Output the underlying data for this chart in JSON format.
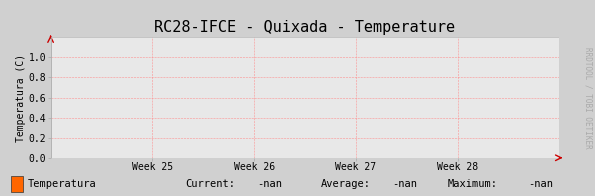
{
  "title": "RC28-IFCE - Quixada - Temperature",
  "ylabel": "Temperatura (C)",
  "fig_background_color": "#d0d0d0",
  "plot_background_color": "#e8e8e8",
  "grid_color": "#ff8888",
  "arrow_color": "#cc0000",
  "border_color": "#aaaaaa",
  "ylim": [
    0.0,
    1.2
  ],
  "yticks": [
    0.0,
    0.2,
    0.4,
    0.6,
    0.8,
    1.0
  ],
  "ytick_labels": [
    "0.0",
    "0.2",
    "0.4",
    "0.6",
    "0.8",
    "1.0"
  ],
  "xtick_labels": [
    "Week 25",
    "Week 26",
    "Week 27",
    "Week 28"
  ],
  "xtick_positions": [
    0.2,
    0.4,
    0.6,
    0.8
  ],
  "legend_label": "Temperatura",
  "legend_color": "#ff6600",
  "current_val": "-nan",
  "average_val": "-nan",
  "maximum_val": "-nan",
  "watermark": "RRDTOOL / TOBI OETIKER",
  "title_fontsize": 11,
  "axis_fontsize": 7,
  "legend_fontsize": 7.5,
  "watermark_fontsize": 5.5
}
